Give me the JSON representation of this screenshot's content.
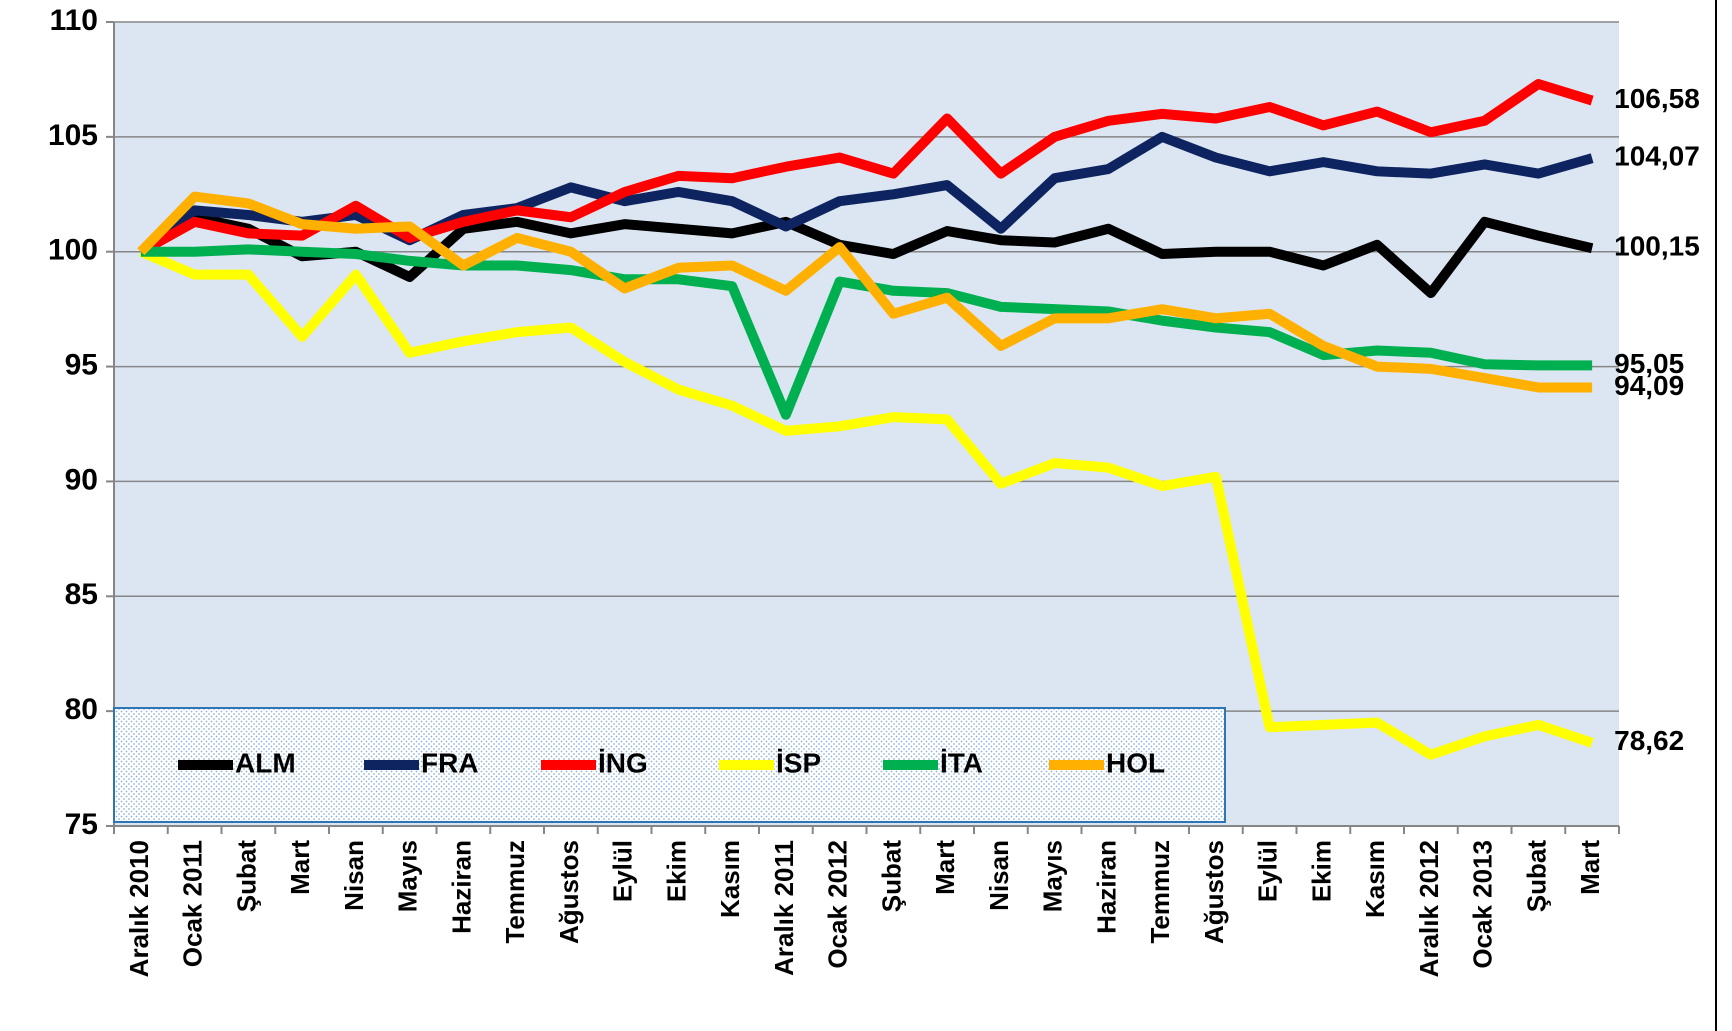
{
  "chart_data": {
    "type": "line",
    "categories": [
      "Aralık 2010",
      "Ocak 2011",
      "Şubat",
      "Mart",
      "Nisan",
      "Mayıs",
      "Haziran",
      "Temmuz",
      "Ağustos",
      "Eylül",
      "Ekim",
      "Kasım",
      "Aralık 2011",
      "Ocak 2012",
      "Şubat",
      "Mart",
      "Nisan",
      "Mayıs",
      "Haziran",
      "Temmuz",
      "Ağustos",
      "Eylül",
      "Ekim",
      "Kasım",
      "Aralık 2012",
      "Ocak 2013",
      "Şubat",
      "Mart"
    ],
    "series": [
      {
        "name": "ALM",
        "color": "#000000",
        "values": [
          100,
          101.5,
          101,
          99.8,
          100,
          98.9,
          101,
          101.3,
          100.8,
          101.2,
          101,
          100.8,
          101.3,
          100.3,
          99.9,
          100.9,
          100.5,
          100.4,
          101,
          99.9,
          100,
          100,
          99.4,
          100.3,
          98.2,
          101.3,
          100.7,
          100.15
        ],
        "value_labels": [
          null,
          null,
          null,
          null,
          null,
          null,
          null,
          null,
          null,
          null,
          null,
          null,
          null,
          null,
          null,
          null,
          null,
          null,
          null,
          null,
          null,
          null,
          null,
          null,
          null,
          null,
          null,
          "100,15"
        ]
      },
      {
        "name": "FRA",
        "color": "#0d2460",
        "values": [
          100,
          101.8,
          101.6,
          101.3,
          101.6,
          100.5,
          101.6,
          101.9,
          102.8,
          102.2,
          102.6,
          102.2,
          101.1,
          102.2,
          102.5,
          102.9,
          101,
          103.2,
          103.6,
          105,
          104.1,
          103.5,
          103.9,
          103.5,
          103.4,
          103.8,
          103.4,
          104.07
        ],
        "value_labels": [
          null,
          null,
          null,
          null,
          null,
          null,
          null,
          null,
          null,
          null,
          null,
          null,
          null,
          null,
          null,
          null,
          null,
          null,
          null,
          null,
          null,
          null,
          null,
          null,
          null,
          null,
          null,
          "104,07"
        ]
      },
      {
        "name": "İNG",
        "color": "#ff0000",
        "values": [
          100,
          101.3,
          100.8,
          100.7,
          102,
          100.6,
          101.3,
          101.8,
          101.5,
          102.6,
          103.3,
          103.2,
          103.7,
          104.1,
          103.4,
          105.8,
          103.4,
          105,
          105.7,
          106,
          105.8,
          106.3,
          105.5,
          106.1,
          105.2,
          105.7,
          107.3,
          106.58
        ],
        "value_labels": [
          null,
          null,
          null,
          null,
          null,
          null,
          null,
          null,
          null,
          null,
          null,
          null,
          null,
          null,
          null,
          null,
          null,
          null,
          null,
          null,
          null,
          null,
          null,
          null,
          null,
          null,
          null,
          "106,58"
        ]
      },
      {
        "name": "İSP",
        "color": "#ffff00",
        "values": [
          100,
          99,
          99,
          96.3,
          99,
          95.6,
          96.1,
          96.5,
          96.7,
          95.2,
          94,
          93.3,
          92.2,
          92.4,
          92.8,
          92.7,
          89.9,
          90.8,
          90.6,
          89.8,
          90.2,
          79.3,
          79.4,
          79.5,
          78.1,
          78.9,
          79.4,
          78.62
        ],
        "value_labels": [
          null,
          null,
          null,
          null,
          null,
          null,
          null,
          null,
          null,
          null,
          null,
          null,
          null,
          null,
          null,
          null,
          null,
          null,
          null,
          null,
          null,
          null,
          null,
          null,
          null,
          null,
          null,
          "78,62"
        ]
      },
      {
        "name": "İTA",
        "color": "#00b050",
        "values": [
          100,
          100,
          100.1,
          100,
          99.9,
          99.6,
          99.4,
          99.4,
          99.2,
          98.8,
          98.8,
          98.5,
          92.9,
          98.7,
          98.3,
          98.2,
          97.6,
          97.5,
          97.4,
          97,
          96.7,
          96.5,
          95.5,
          95.7,
          95.6,
          95.1,
          95.05,
          95.05
        ],
        "value_labels": [
          null,
          null,
          null,
          null,
          null,
          null,
          null,
          null,
          null,
          null,
          null,
          null,
          null,
          null,
          null,
          null,
          null,
          null,
          null,
          null,
          null,
          null,
          null,
          null,
          null,
          null,
          null,
          "95,05"
        ]
      },
      {
        "name": "HOL",
        "color": "#ffb000",
        "values": [
          100,
          102.4,
          102.1,
          101.2,
          101,
          101.1,
          99.4,
          100.6,
          100,
          98.4,
          99.3,
          99.4,
          98.3,
          100.2,
          97.3,
          98,
          95.9,
          97.1,
          97.1,
          97.5,
          97.1,
          97.3,
          95.9,
          95,
          94.9,
          94.5,
          94.09,
          94.09
        ],
        "value_labels": [
          null,
          null,
          null,
          null,
          null,
          null,
          null,
          null,
          null,
          null,
          null,
          null,
          null,
          null,
          null,
          null,
          null,
          null,
          null,
          null,
          null,
          null,
          null,
          null,
          null,
          null,
          null,
          "94,09"
        ]
      }
    ],
    "ylim": [
      75,
      110
    ],
    "yticks": [
      75,
      80,
      85,
      90,
      95,
      100,
      105,
      110
    ],
    "grid": true,
    "legend": "bottom-left"
  }
}
